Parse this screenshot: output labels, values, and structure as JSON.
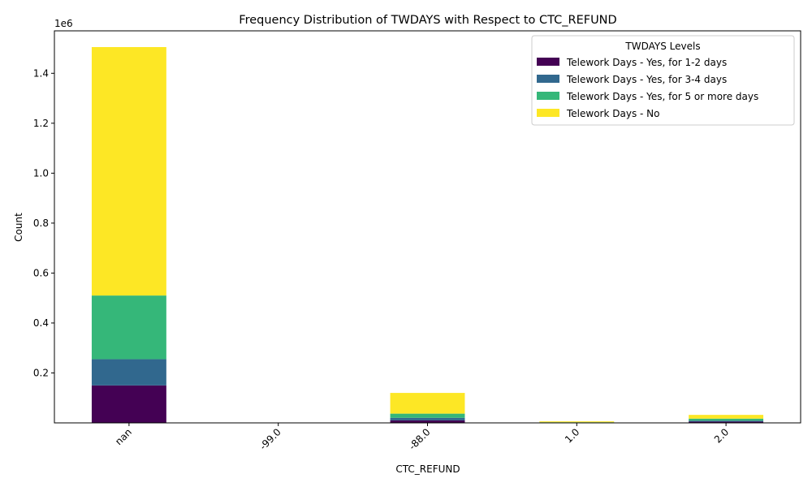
{
  "chart_data": {
    "type": "bar",
    "stacked": true,
    "title": "Frequency Distribution of TWDAYS with Respect to CTC_REFUND",
    "xlabel": "CTC_REFUND",
    "ylabel": "Count",
    "offset_label": "1e6",
    "categories": [
      "nan",
      "-99.0",
      "-88.0",
      "1.0",
      "2.0"
    ],
    "ylim": [
      0,
      1570000
    ],
    "yticks": [
      200000,
      400000,
      600000,
      800000,
      1000000,
      1200000,
      1400000
    ],
    "ytick_labels": [
      "0.2",
      "0.4",
      "0.6",
      "0.8",
      "1.0",
      "1.2",
      "1.4"
    ],
    "legend": {
      "title": "TWDAYS Levels",
      "position": "upper-right"
    },
    "series": [
      {
        "name": "Telework Days - Yes, for 1-2 days",
        "color": "#440154",
        "values": [
          150000,
          0,
          10000,
          1000,
          5000
        ]
      },
      {
        "name": "Telework Days - Yes, for 3-4 days",
        "color": "#31688e",
        "values": [
          105000,
          0,
          10000,
          500,
          4000
        ]
      },
      {
        "name": "Telework Days - Yes, for 5 or more days",
        "color": "#35b779",
        "values": [
          255000,
          0,
          17000,
          1000,
          8000
        ]
      },
      {
        "name": "Telework Days - No",
        "color": "#fde725",
        "values": [
          995000,
          1,
          83000,
          3500,
          15000
        ]
      }
    ]
  }
}
